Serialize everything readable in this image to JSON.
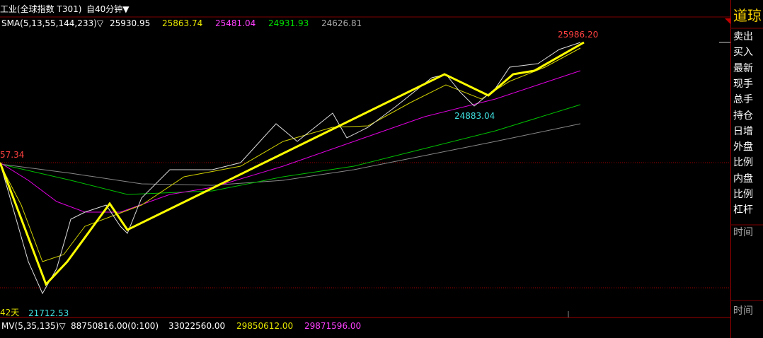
{
  "toolbar": {
    "instrument": "工业(全球指数 T301)",
    "period": "自40分钟▼"
  },
  "indicator": {
    "label": "SMA(5,13,55,144,233)▽",
    "values": [
      "25930.95",
      "25863.74",
      "25481.04",
      "24931.93",
      "24626.81"
    ]
  },
  "annotations": {
    "high": "25986.20",
    "pullback_low": "24883.04",
    "left_level": "57.34",
    "low": "21712.53",
    "days": "42天"
  },
  "volume": {
    "label": "MV(5,35,135)▽",
    "values": [
      "88750816.00(0:100)",
      "33022560.00",
      "29850612.00",
      "29871596.00"
    ]
  },
  "side_panel": {
    "title": "道琼",
    "rows": [
      "卖出",
      "买入",
      "最新",
      "现手",
      "总手",
      "持仓",
      "日增",
      "外盘",
      "比例",
      "内盘",
      "比例",
      "杠杆"
    ],
    "time_labels": [
      "时间",
      "时间"
    ]
  }
}
